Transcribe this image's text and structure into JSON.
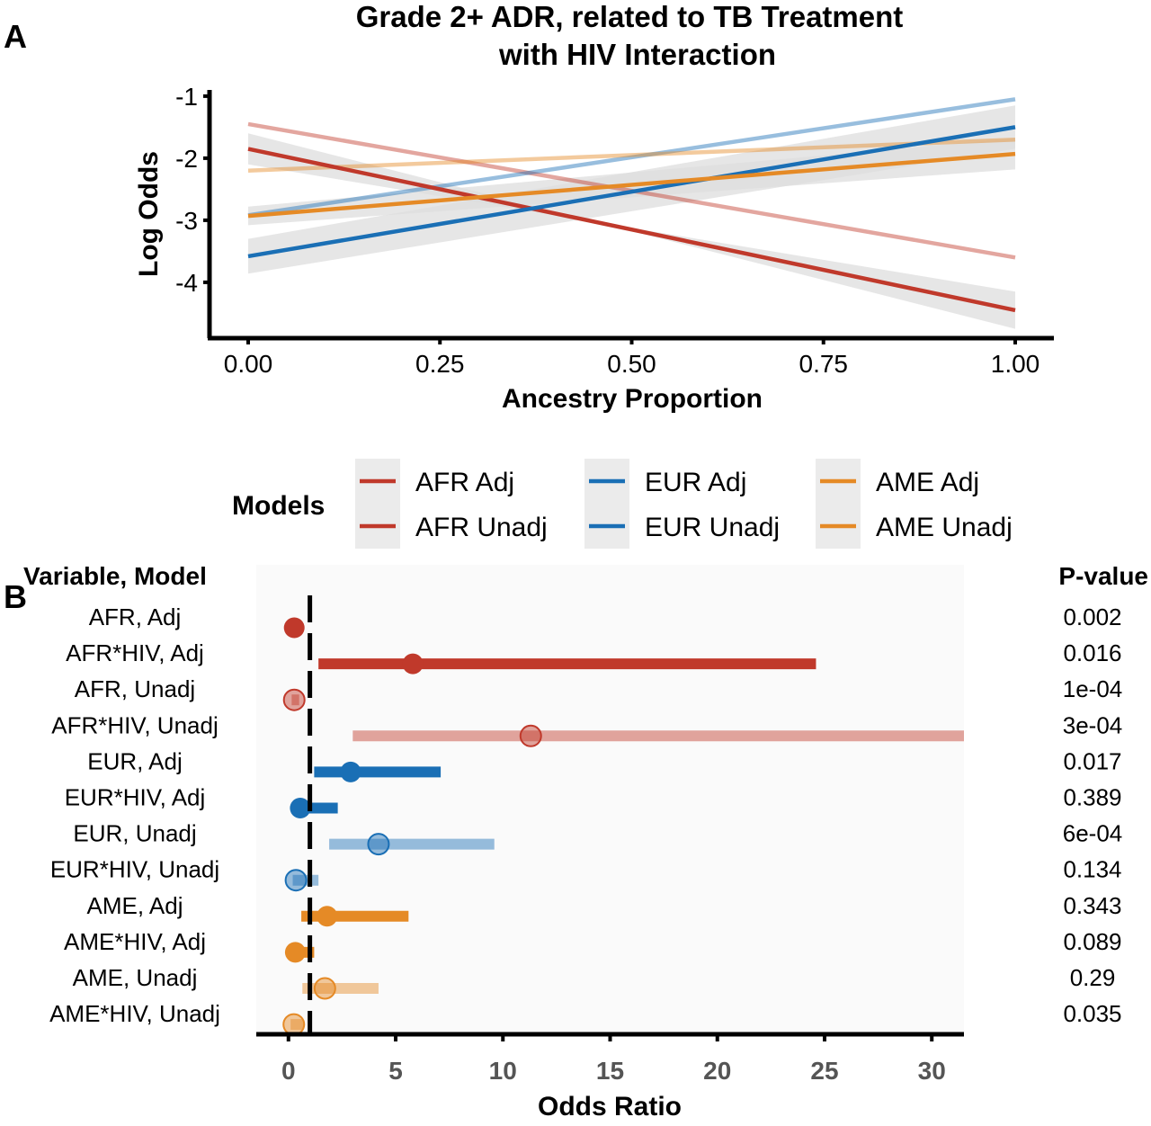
{
  "panel_a": {
    "letter": "A",
    "title_line1": "Grade 2+ ADR, related to TB Treatment",
    "title_line2": "with HIV Interaction"
  },
  "legend": {
    "title": "Models",
    "entries": [
      "AFR Adj",
      "AFR Unadj",
      "EUR Adj",
      "EUR Unadj",
      "AME Adj",
      "AME Unadj"
    ]
  },
  "panel_b": {
    "letter": "B",
    "col_left_header": "Variable, Model",
    "col_right_header": "P-value"
  },
  "colors": {
    "afr": "#c0392b",
    "eur": "#1a6fb5",
    "ame": "#e58a26",
    "ci_band": "#dddddd",
    "legend_bg": "#ebebeb"
  },
  "chart_data": [
    {
      "type": "line",
      "title": "Grade 2+ ADR, related to TB Treatment with HIV Interaction",
      "xlabel": "Ancestry Proportion",
      "ylabel": "Log Odds",
      "xlim": [
        0,
        1
      ],
      "ylim": [
        -4.9,
        -0.9
      ],
      "xticks": [
        0,
        0.25,
        0.5,
        0.75,
        1
      ],
      "xtick_labels": [
        "0.00",
        "0.25",
        "0.50",
        "0.75",
        "1.00"
      ],
      "yticks": [
        -1,
        -2,
        -3,
        -4
      ],
      "ytick_labels": [
        "-1",
        "-2",
        "-3",
        "-4"
      ],
      "legend_title": "Models",
      "legend_placement": "bottom",
      "grid": false,
      "series": [
        {
          "name": "AFR Adj",
          "group": "afr",
          "faded": false,
          "x": [
            0,
            1
          ],
          "y": [
            -1.85,
            -4.45
          ],
          "ci_lo": [
            -1.6,
            -4.75
          ],
          "ci_hi": [
            -2.1,
            -4.15
          ]
        },
        {
          "name": "AFR Unadj",
          "group": "afr",
          "faded": true,
          "x": [
            0,
            1
          ],
          "y": [
            -1.45,
            -3.6
          ],
          "ci_lo": null,
          "ci_hi": null
        },
        {
          "name": "EUR Adj",
          "group": "eur",
          "faded": false,
          "x": [
            0,
            1
          ],
          "y": [
            -3.58,
            -1.5
          ],
          "ci_lo": [
            -3.3,
            -1.15
          ],
          "ci_hi": [
            -3.86,
            -1.85
          ]
        },
        {
          "name": "EUR Unadj",
          "group": "eur",
          "faded": true,
          "x": [
            0,
            1
          ],
          "y": [
            -2.92,
            -1.05
          ],
          "ci_lo": null,
          "ci_hi": null
        },
        {
          "name": "AME Adj",
          "group": "ame",
          "faded": false,
          "x": [
            0,
            1
          ],
          "y": [
            -2.93,
            -1.93
          ],
          "ci_lo": [
            -2.78,
            -1.68
          ],
          "ci_hi": [
            -3.08,
            -2.18
          ]
        },
        {
          "name": "AME Unadj",
          "group": "ame",
          "faded": true,
          "x": [
            0,
            1
          ],
          "y": [
            -2.2,
            -1.7
          ],
          "ci_lo": null,
          "ci_hi": null
        }
      ]
    },
    {
      "type": "forest",
      "xlabel": "Odds Ratio",
      "xlim": [
        -1.5,
        31.5
      ],
      "xticks": [
        0,
        5,
        10,
        15,
        20,
        25,
        30
      ],
      "xtick_labels": [
        "0",
        "5",
        "10",
        "15",
        "20",
        "25",
        "30"
      ],
      "reference_line": 1,
      "rows": [
        {
          "label": "AFR, Adj",
          "group": "afr",
          "faded": false,
          "or": 0.27,
          "lo": 0.18,
          "hi": 0.55,
          "p": "0.002"
        },
        {
          "label": "AFR*HIV, Adj",
          "group": "afr",
          "faded": false,
          "or": 5.8,
          "lo": 1.4,
          "hi": 24.6,
          "p": "0.016"
        },
        {
          "label": "AFR, Unadj",
          "group": "afr",
          "faded": true,
          "or": 0.27,
          "lo": 0.15,
          "hi": 0.5,
          "p": "1e-04"
        },
        {
          "label": "AFR*HIV, Unadj",
          "group": "afr",
          "faded": true,
          "or": 11.3,
          "lo": 3.0,
          "hi": 31.5,
          "p": "3e-04"
        },
        {
          "label": "EUR, Adj",
          "group": "eur",
          "faded": false,
          "or": 2.9,
          "lo": 1.2,
          "hi": 7.1,
          "p": "0.017"
        },
        {
          "label": "EUR*HIV, Adj",
          "group": "eur",
          "faded": false,
          "or": 0.55,
          "lo": 0.13,
          "hi": 2.3,
          "p": "0.389"
        },
        {
          "label": "EUR, Unadj",
          "group": "eur",
          "faded": true,
          "or": 4.2,
          "lo": 1.9,
          "hi": 9.6,
          "p": "6e-04"
        },
        {
          "label": "EUR*HIV, Unadj",
          "group": "eur",
          "faded": true,
          "or": 0.35,
          "lo": 0.2,
          "hi": 1.4,
          "p": "0.134"
        },
        {
          "label": "AME, Adj",
          "group": "ame",
          "faded": false,
          "or": 1.8,
          "lo": 0.6,
          "hi": 5.6,
          "p": "0.343"
        },
        {
          "label": "AME*HIV, Adj",
          "group": "ame",
          "faded": false,
          "or": 0.32,
          "lo": 0.12,
          "hi": 1.2,
          "p": "0.089"
        },
        {
          "label": "AME, Unadj",
          "group": "ame",
          "faded": true,
          "or": 1.7,
          "lo": 0.65,
          "hi": 4.2,
          "p": "0.29"
        },
        {
          "label": "AME*HIV, Unadj",
          "group": "ame",
          "faded": true,
          "or": 0.25,
          "lo": 0.1,
          "hi": 0.7,
          "p": "0.035"
        }
      ]
    }
  ]
}
